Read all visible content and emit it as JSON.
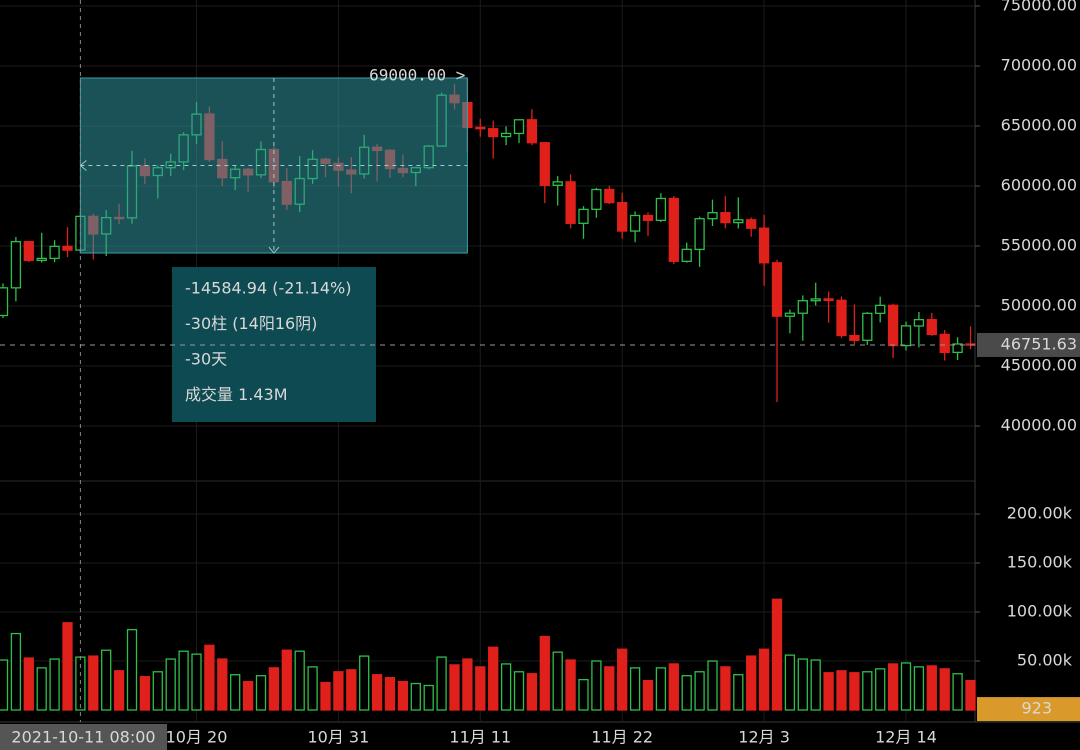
{
  "chart_data": {
    "type": "candlestick",
    "categories": [
      null,
      null,
      null,
      null,
      null,
      null,
      "2021-10-11 08:00",
      null,
      null,
      null,
      null,
      null,
      null,
      null,
      null,
      "10月 20",
      null,
      null,
      null,
      null,
      null,
      null,
      null,
      null,
      null,
      null,
      "10月 31",
      null,
      null,
      null,
      null,
      null,
      null,
      null,
      null,
      null,
      null,
      "11月 11",
      null,
      null,
      null,
      null,
      null,
      null,
      null,
      null,
      null,
      null,
      "11月 22",
      null,
      null,
      null,
      null,
      null,
      null,
      null,
      null,
      null,
      null,
      "12月 3",
      null,
      null,
      null,
      null,
      null,
      null,
      null,
      null,
      null,
      null,
      "12月 14",
      null,
      null,
      null,
      null,
      null
    ],
    "open": [
      49208,
      51514,
      55361,
      53805,
      53967,
      54966,
      54660,
      57471,
      56006,
      57370,
      57347,
      61672,
      60876,
      61528,
      62011,
      64262,
      65992,
      62210,
      60693,
      61393,
      60930,
      63040,
      60364,
      58483,
      60622,
      62227,
      61888,
      61320,
      61005,
      63227,
      62971,
      61453,
      61125,
      61527,
      63326,
      67567,
      66947,
      64882,
      64774,
      64122,
      64380,
      65520,
      63606,
      60059,
      60345,
      56891,
      58057,
      59707,
      58617,
      56247,
      57541,
      57138,
      58960,
      53723,
      54716,
      57274,
      57776,
      56950,
      57185,
      56484,
      53601,
      49153,
      49397,
      50441,
      50589,
      50471,
      47535,
      47141,
      49389,
      50054,
      46702,
      48336,
      48864,
      47632,
      46134,
      46834
    ],
    "high": [
      51886,
      55750,
      55400,
      56100,
      55489,
      56561,
      57840,
      57680,
      58000,
      58532,
      62933,
      62300,
      61700,
      62695,
      64486,
      67000,
      66639,
      63733,
      61750,
      61500,
      63710,
      63293,
      61496,
      62499,
      62980,
      62359,
      62406,
      62419,
      64270,
      63500,
      63086,
      62636,
      61599,
      63400,
      67789,
      68525,
      69000,
      65600,
      65450,
      64971,
      65550,
      66401,
      63617,
      60823,
      60977,
      58320,
      59845,
      60029,
      59444,
      57875,
      57800,
      59398,
      59172,
      55280,
      57445,
      58865,
      59176,
      59053,
      57375,
      57600,
      53859,
      49699,
      50883,
      51936,
      51200,
      50797,
      50125,
      49485,
      50777,
      50189,
      48700,
      49500,
      49436,
      48004,
      47392,
      48300
    ],
    "low": [
      49000,
      50382,
      53657,
      53617,
      53661,
      54080,
      54415.06,
      53879,
      54167,
      56818,
      56850,
      60150,
      58963,
      60833,
      61323,
      63482,
      62000,
      60000,
      59668,
      59510,
      60650,
      59817,
      58000,
      57820,
      60174,
      60723,
      59945,
      59405,
      60624,
      60382,
      60677,
      60721,
      60000,
      61384,
      63300,
      66382,
      62822,
      64100,
      62278,
      63400,
      63576,
      63400,
      58574,
      58373,
      56474,
      55600,
      57353,
      58486,
      55610,
      55317,
      55837,
      57000,
      53500,
      53610,
      53256,
      56666,
      56476,
      56458,
      55777,
      51680,
      42000,
      47727,
      47100,
      50039,
      48600,
      47320,
      46852,
      46751,
      48638,
      45672,
      46290,
      46547,
      47511,
      45456,
      45500,
      46406
    ],
    "close": [
      51515,
      55361,
      53805,
      53967,
      54966,
      54659,
      57471,
      56005,
      57367,
      57347,
      61672,
      60875,
      61528,
      62010,
      64262,
      65992,
      62210,
      60692,
      61393,
      60930,
      63040,
      60363,
      58482,
      60622,
      62227,
      61888,
      61318,
      61004,
      63226,
      62970,
      61452,
      61125,
      61527,
      63326,
      67566,
      66947,
      64882,
      64774,
      64122,
      64380,
      65519,
      63606,
      60058,
      60345,
      56891,
      58052,
      59707,
      58622,
      56247,
      57541,
      57138,
      58960,
      53727,
      54721,
      57274,
      57776,
      56950,
      57184,
      56480,
      53601,
      49152,
      49396,
      50441,
      50588,
      50471,
      47545,
      47140,
      49389,
      50053,
      46702,
      48343,
      48864,
      47632,
      46131,
      46834,
      46751.63
    ],
    "volume": [
      51000,
      78000,
      53000,
      43000,
      52000,
      89000,
      54000,
      55000,
      61000,
      40000,
      82000,
      34000,
      39000,
      52000,
      60000,
      57000,
      66000,
      52000,
      36000,
      29000,
      35000,
      43000,
      61000,
      60000,
      44000,
      28000,
      39000,
      41000,
      55000,
      36000,
      33000,
      29000,
      27000,
      25000,
      54000,
      46000,
      52000,
      44000,
      64000,
      47000,
      39000,
      37000,
      75000,
      59000,
      51000,
      31000,
      50000,
      44000,
      62000,
      43000,
      30000,
      43000,
      47000,
      35000,
      39000,
      50000,
      44000,
      36000,
      55000,
      62000,
      113000,
      56000,
      52000,
      51000,
      38000,
      40000,
      38000,
      39000,
      42000,
      47000,
      48000,
      44000,
      45000,
      42000,
      37000,
      30000
    ],
    "up_color": "#2fbf4a",
    "down_color": "#e0201b",
    "ylim": [
      35500,
      75500
    ],
    "yticks": [
      {
        "value": 40000,
        "label": "40000.00"
      },
      {
        "value": 45000,
        "label": "45000.00"
      },
      {
        "value": 50000,
        "label": "50000.00"
      },
      {
        "value": 55000,
        "label": "55000.00"
      },
      {
        "value": 60000,
        "label": "60000.00"
      },
      {
        "value": 65000,
        "label": "65000.00"
      },
      {
        "value": 70000,
        "label": "70000.00"
      },
      {
        "value": 75000,
        "label": "75000.00"
      }
    ],
    "y2lim": [
      0,
      225000
    ],
    "y2ticks": [
      {
        "value": 50000,
        "label": "50.00k"
      },
      {
        "value": 100000,
        "label": "100.00k"
      },
      {
        "value": 150000,
        "label": "150.00k"
      },
      {
        "value": 200000,
        "label": "200.00k"
      }
    ],
    "last_price": 46751.63,
    "volume_readout": 923,
    "crosshair_index": 6,
    "measure": {
      "start": 6,
      "end": 36,
      "high_label": "69000.00 >",
      "lines": [
        "-14584.94 (-21.14%)",
        "-30柱 (14阳16阴)",
        "-30天",
        "成交量 1.43M"
      ]
    }
  }
}
